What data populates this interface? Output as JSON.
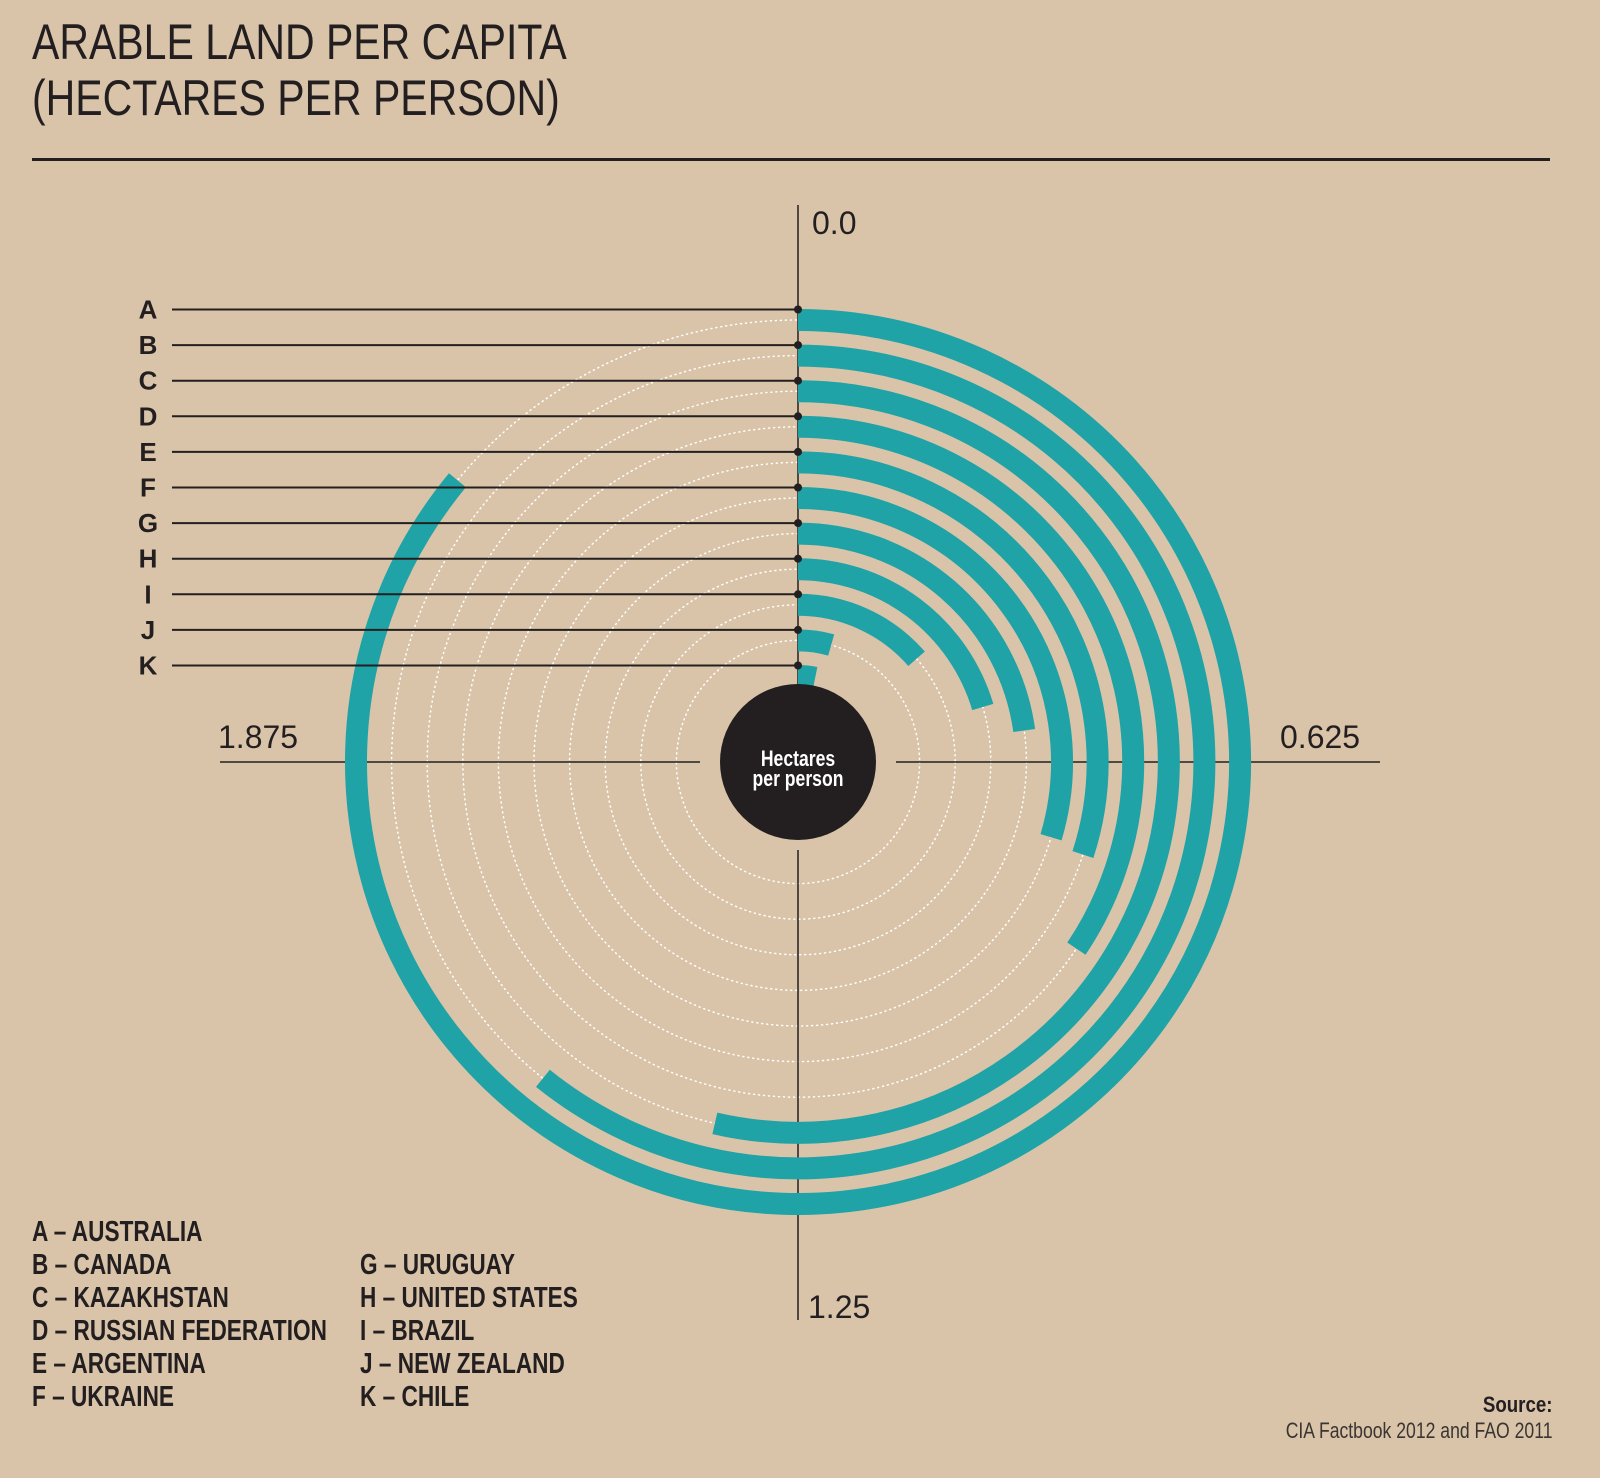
{
  "title_line1": "ARABLE LAND PER CAPITA",
  "title_line2": "(HECTARES PER PERSON)",
  "center_label_line1": "Hectares",
  "center_label_line2": "per person",
  "colors": {
    "background": "#d9c4a9",
    "bar": "#1fa3a6",
    "ink": "#231f20",
    "guide": "#ffffff"
  },
  "chart_data": {
    "type": "radial-bar",
    "full_circle_value": 2.5,
    "axis_ticks": [
      "0.0",
      "0.625",
      "1.25",
      "1.875"
    ],
    "unit": "Hectares per person",
    "categories": [
      "A",
      "B",
      "C",
      "D",
      "E",
      "F",
      "G",
      "H",
      "I",
      "J",
      "K"
    ],
    "values": [
      2.15,
      1.52,
      1.34,
      0.86,
      0.75,
      0.74,
      0.57,
      0.51,
      0.34,
      0.11,
      0.08
    ]
  },
  "legend": [
    {
      "key": "A",
      "country": "AUSTRALIA"
    },
    {
      "key": "B",
      "country": "CANADA"
    },
    {
      "key": "C",
      "country": "KAZAKHSTAN"
    },
    {
      "key": "D",
      "country": "RUSSIAN FEDERATION"
    },
    {
      "key": "E",
      "country": "ARGENTINA"
    },
    {
      "key": "F",
      "country": "UKRAINE"
    },
    {
      "key": "G",
      "country": "URUGUAY"
    },
    {
      "key": "H",
      "country": "UNITED STATES"
    },
    {
      "key": "I",
      "country": "BRAZIL"
    },
    {
      "key": "J",
      "country": "NEW ZEALAND"
    },
    {
      "key": "K",
      "country": "CHILE"
    }
  ],
  "legend_text": [
    "A – AUSTRALIA",
    "B – CANADA",
    "C – KAZAKHSTAN",
    "D – RUSSIAN FEDERATION",
    "E – ARGENTINA",
    "F – UKRAINE",
    "G – URUGUAY",
    "H – UNITED STATES",
    "I – BRAZIL",
    "J – NEW ZEALAND",
    "K – CHILE"
  ],
  "source_label": "Source:",
  "source_text": "CIA Factbook 2012 and FAO 2011"
}
